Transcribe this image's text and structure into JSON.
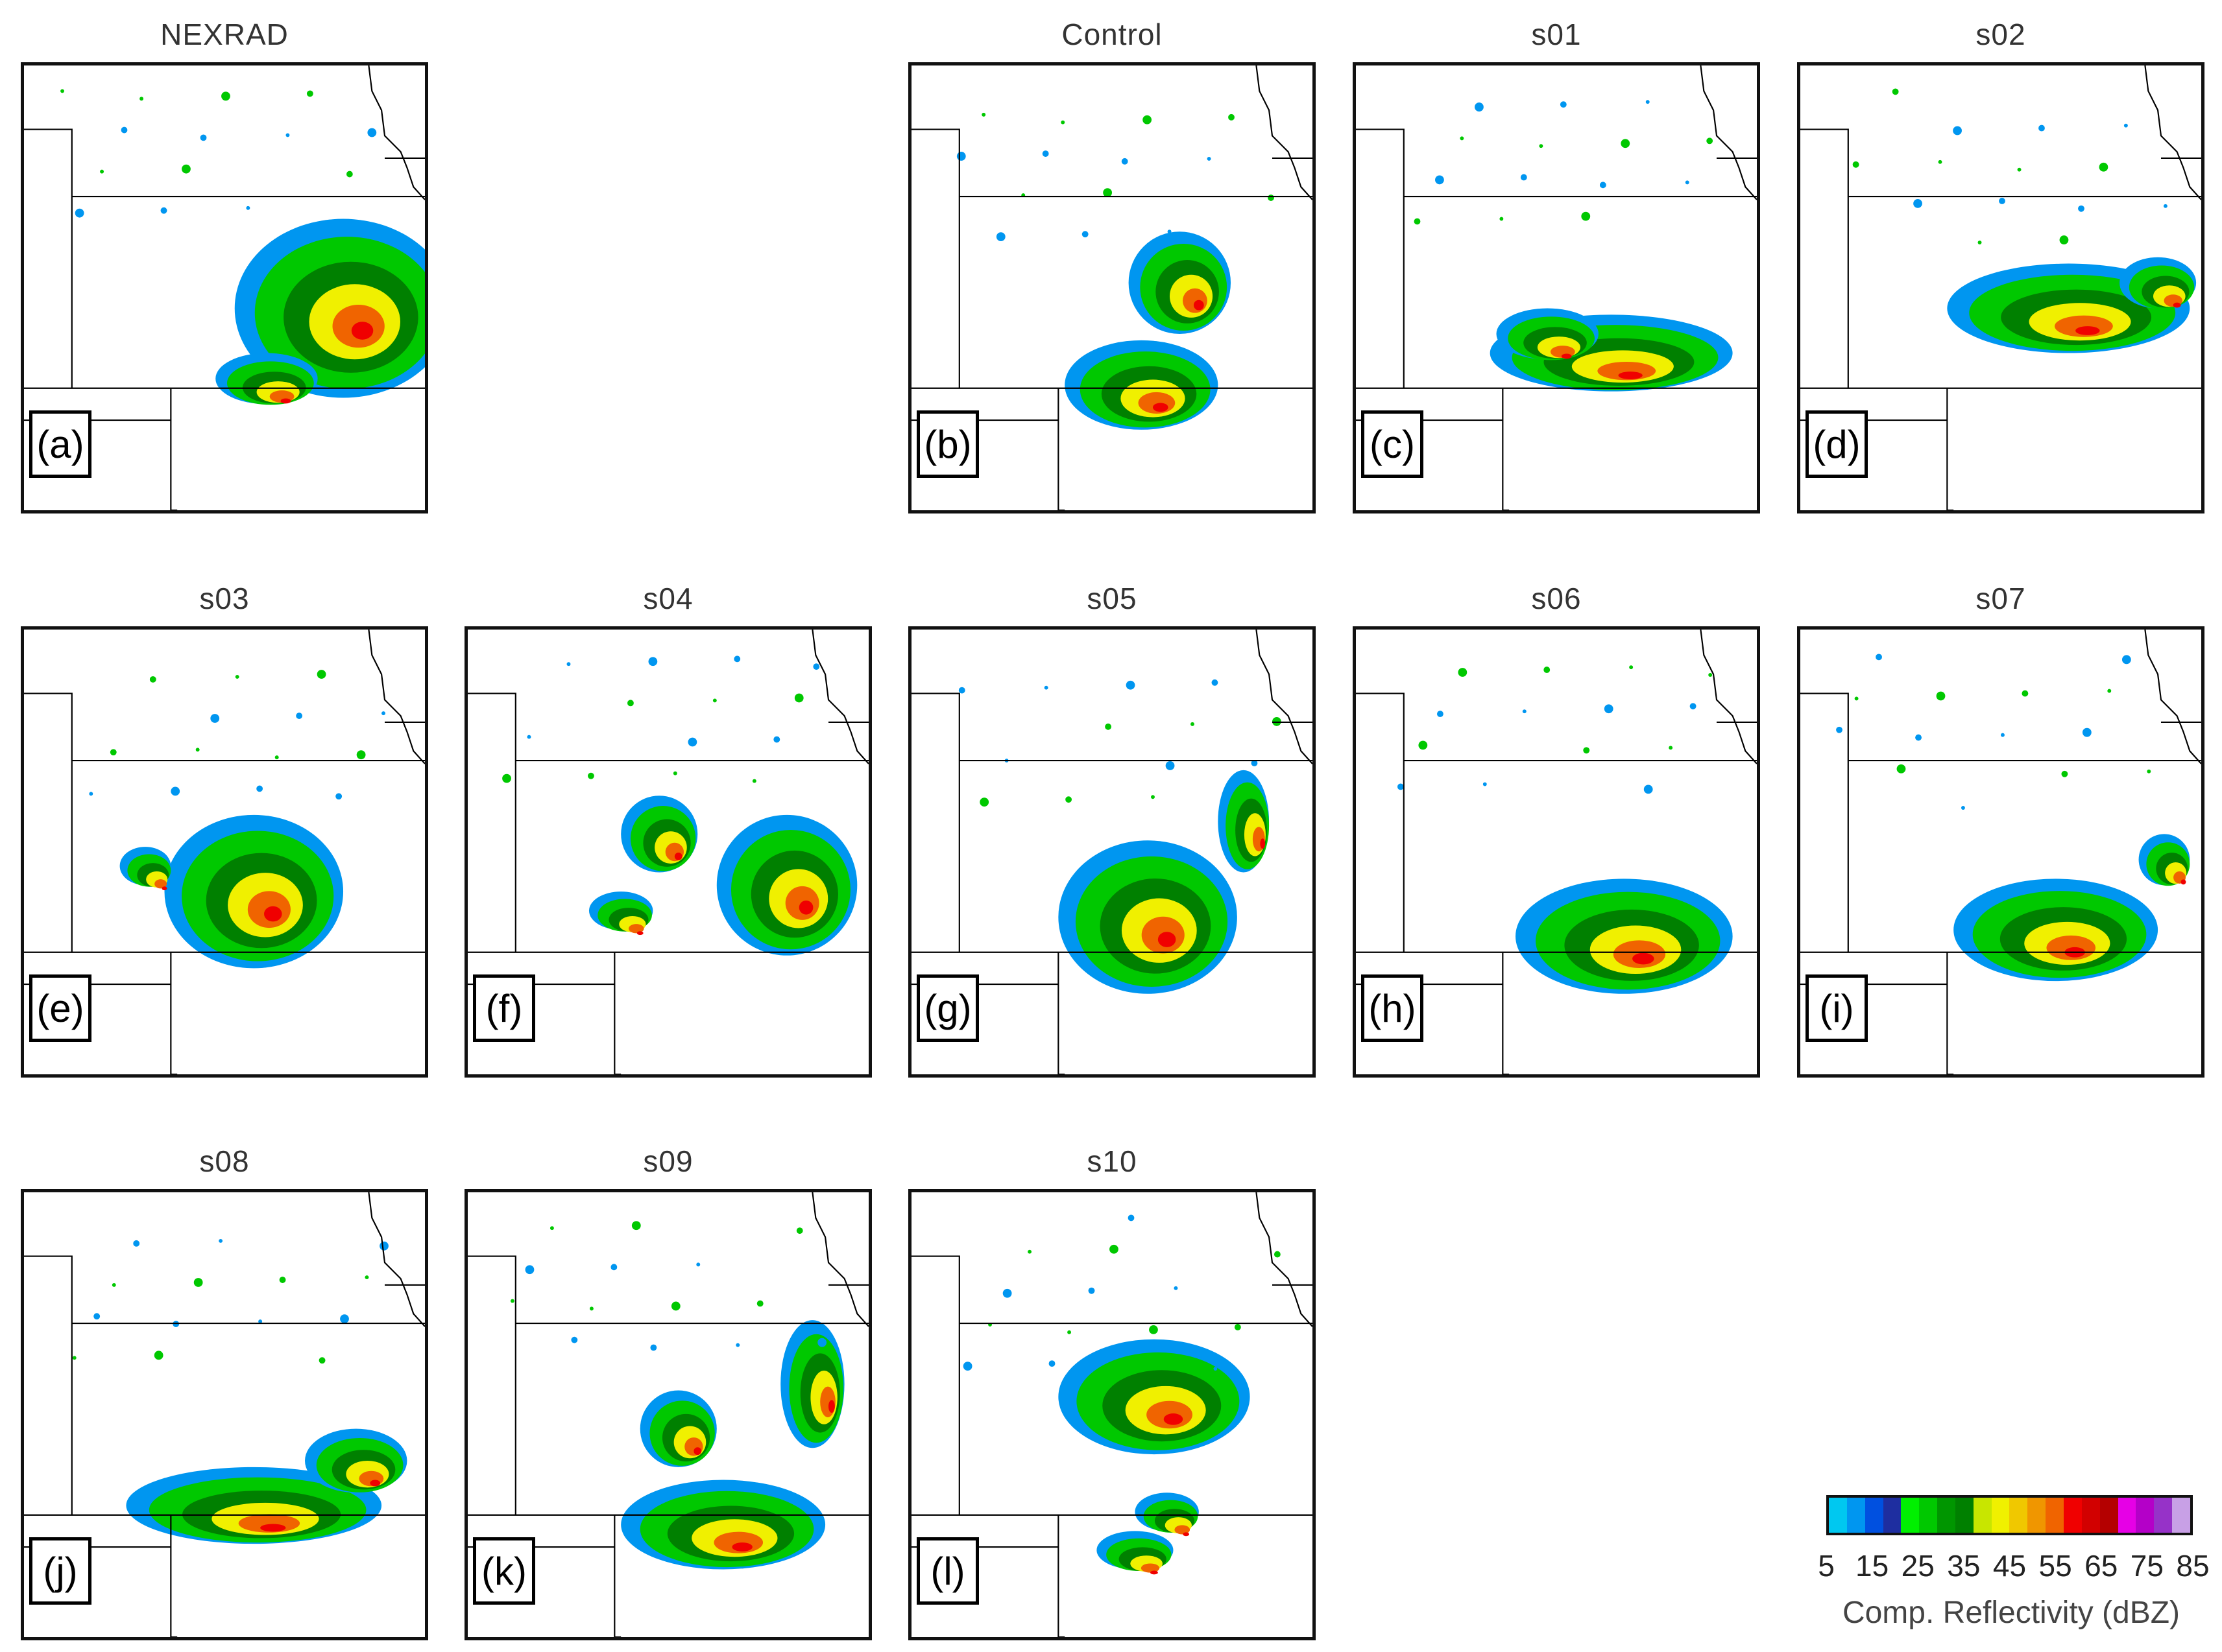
{
  "panels": [
    {
      "title": "NEXRAD",
      "letter": "(a)",
      "col": 0,
      "row": 0
    },
    {
      "title": "Control",
      "letter": "(b)",
      "col": 2,
      "row": 0
    },
    {
      "title": "s01",
      "letter": "(c)",
      "col": 3,
      "row": 0
    },
    {
      "title": "s02",
      "letter": "(d)",
      "col": 4,
      "row": 0
    },
    {
      "title": "s03",
      "letter": "(e)",
      "col": 0,
      "row": 1
    },
    {
      "title": "s04",
      "letter": "(f)",
      "col": 1,
      "row": 1
    },
    {
      "title": "s05",
      "letter": "(g)",
      "col": 2,
      "row": 1
    },
    {
      "title": "s06",
      "letter": "(h)",
      "col": 3,
      "row": 1
    },
    {
      "title": "s07",
      "letter": "(i)",
      "col": 4,
      "row": 1
    },
    {
      "title": "s08",
      "letter": "(j)",
      "col": 0,
      "row": 2
    },
    {
      "title": "s09",
      "letter": "(k)",
      "col": 1,
      "row": 2
    },
    {
      "title": "s10",
      "letter": "(l)",
      "col": 2,
      "row": 2
    }
  ],
  "colorbar": {
    "label": "Comp. Reflectivity (dBZ)",
    "tick_labels": [
      "5",
      "15",
      "25",
      "35",
      "45",
      "55",
      "65",
      "75",
      "85"
    ],
    "colors": [
      "#00c8f0",
      "#0096f0",
      "#0050e0",
      "#1e2ea0",
      "#00f000",
      "#00c800",
      "#009600",
      "#008000",
      "#c8e600",
      "#f0f000",
      "#f0c800",
      "#f09600",
      "#f06400",
      "#f00000",
      "#d20000",
      "#b40000",
      "#e600e6",
      "#b400c8",
      "#9632c8",
      "#c8a0e6"
    ]
  }
}
